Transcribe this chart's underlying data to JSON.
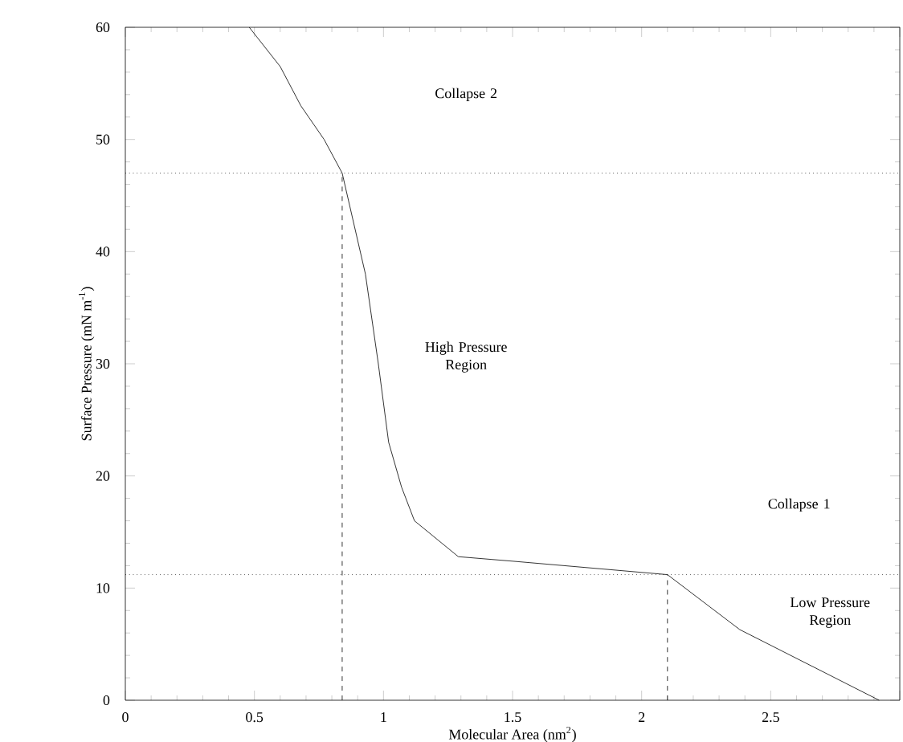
{
  "chart_data": {
    "type": "line",
    "xlabel": "Molecular Area (nm$^{2}$)",
    "ylabel": "Surface Pressure (mN m$^{-1}$)",
    "xlim": [
      0,
      3
    ],
    "ylim": [
      0,
      60
    ],
    "xticks": [
      0,
      0.5,
      1,
      1.5,
      2,
      2.5,
      {
        "value": 3,
        "label": null
      }
    ],
    "yticks": [
      0,
      10,
      20,
      30,
      40,
      50,
      60
    ],
    "marker": "none",
    "series": [
      {
        "color": "#000000",
        "line_style": "solid",
        "x": [
          0.48,
          0.6,
          0.68,
          0.77,
          0.84,
          0.93,
          0.98,
          1.02,
          1.07,
          1.12,
          1.29,
          1.5,
          2.1,
          2.38,
          2.92
        ],
        "values": [
          60,
          56.5,
          53,
          50,
          47,
          38,
          30,
          23,
          19,
          16,
          12.8,
          12.4,
          11.2,
          6.3,
          0
        ]
      },
      {
        "color": "#000000",
        "line_style": "dashed",
        "x": [
          0.84,
          0.84
        ],
        "values": [
          0,
          47
        ]
      },
      {
        "color": "#000000",
        "line_style": "dashed",
        "x": [
          2.1,
          2.1
        ],
        "values": [
          0,
          11.2
        ]
      }
    ],
    "ref_lines": [
      {
        "axis": "y",
        "value": 47,
        "line_style": "dotted",
        "color": "#000000"
      },
      {
        "axis": "y",
        "value": 11.2,
        "line_style": "dotted",
        "color": "#000000"
      }
    ],
    "annotations": [
      "Collapse 2",
      "High Pressure Region",
      "Collapse 1",
      "Low Pressure Region"
    ]
  }
}
